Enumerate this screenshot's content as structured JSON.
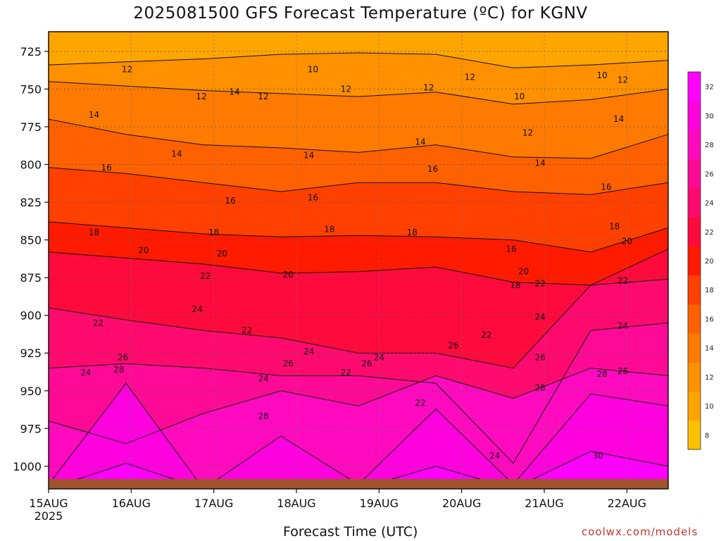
{
  "title": "2025081500 GFS Forecast Temperature (ºC) for KGNV",
  "xlabel": "Forecast Time (UTC)",
  "credit": "coolwx.com/models",
  "chart_data": {
    "type": "heatmap",
    "title": "2025081500 GFS Forecast Temperature (ºC) for KGNV",
    "xlabel": "Forecast Time (UTC)",
    "ylabel": "",
    "x_ticks": [
      "15AUG",
      "16AUG",
      "17AUG",
      "18AUG",
      "19AUG",
      "20AUG",
      "21AUG",
      "22AUG"
    ],
    "x_tick_sub": "2025",
    "xlim_days": [
      0,
      7.5
    ],
    "y_ticks": [
      725,
      750,
      775,
      800,
      825,
      850,
      875,
      900,
      925,
      950,
      975,
      1000
    ],
    "ylim_hpa": [
      1015,
      712
    ],
    "y_reversed": true,
    "grid": true,
    "contour_interval": 2,
    "colorbar_levels": [
      8,
      10,
      12,
      14,
      16,
      18,
      20,
      22,
      24,
      26,
      28,
      30,
      32
    ],
    "colorbar_colors": [
      "#ffc000",
      "#ffa500",
      "#ff9000",
      "#ff7a00",
      "#ff6000",
      "#ff4000",
      "#ff1a00",
      "#ff0a3c",
      "#ff0a6e",
      "#ff0a96",
      "#ff0abe",
      "#ff00de",
      "#ff00ff"
    ],
    "isotherm_hpa": [
      {
        "t": 10,
        "hpa": [
          734,
          732,
          730,
          727,
          726,
          727,
          736,
          734,
          731
        ]
      },
      {
        "t": 12,
        "hpa": [
          745,
          748,
          751,
          753,
          755,
          752,
          760,
          757,
          750
        ]
      },
      {
        "t": 14,
        "hpa": [
          770,
          780,
          787,
          789,
          792,
          787,
          795,
          796,
          780
        ]
      },
      {
        "t": 16,
        "hpa": [
          802,
          806,
          812,
          818,
          812,
          812,
          818,
          820,
          812
        ]
      },
      {
        "t": 18,
        "hpa": [
          838,
          842,
          846,
          848,
          847,
          848,
          850,
          858,
          842
        ]
      },
      {
        "t": 20,
        "hpa": [
          858,
          862,
          866,
          872,
          871,
          868,
          878,
          880,
          856
        ]
      },
      {
        "t": 22,
        "hpa": [
          895,
          903,
          910,
          915,
          925,
          925,
          935,
          880,
          876
        ]
      },
      {
        "t": 24,
        "hpa": [
          935,
          932,
          935,
          940,
          940,
          945,
          998,
          910,
          905
        ]
      },
      {
        "t": 26,
        "hpa": [
          970,
          985,
          965,
          950,
          960,
          940,
          955,
          935,
          940
        ]
      },
      {
        "t": 28,
        "hpa": [
          1012,
          945,
          1015,
          980,
          1012,
          962,
          1012,
          952,
          960
        ]
      },
      {
        "t": 30,
        "hpa": [
          1015,
          998,
          1015,
          1010,
          1015,
          1000,
          1015,
          990,
          1000
        ]
      }
    ],
    "labels": [
      {
        "text": "10",
        "day": 3.2,
        "hpa": 737
      },
      {
        "text": "10",
        "day": 5.7,
        "hpa": 755
      },
      {
        "text": "10",
        "day": 6.7,
        "hpa": 741
      },
      {
        "text": "12",
        "day": 0.95,
        "hpa": 737
      },
      {
        "text": "12",
        "day": 1.85,
        "hpa": 755
      },
      {
        "text": "12",
        "day": 2.6,
        "hpa": 755
      },
      {
        "text": "12",
        "day": 3.6,
        "hpa": 750
      },
      {
        "text": "12",
        "day": 4.6,
        "hpa": 749
      },
      {
        "text": "12",
        "day": 5.1,
        "hpa": 742
      },
      {
        "text": "12",
        "day": 5.8,
        "hpa": 779
      },
      {
        "text": "12",
        "day": 6.95,
        "hpa": 744
      },
      {
        "text": "14",
        "day": 0.55,
        "hpa": 767
      },
      {
        "text": "14",
        "day": 2.25,
        "hpa": 752
      },
      {
        "text": "14",
        "day": 1.55,
        "hpa": 793
      },
      {
        "text": "14",
        "day": 3.15,
        "hpa": 794
      },
      {
        "text": "14",
        "day": 4.5,
        "hpa": 785
      },
      {
        "text": "14",
        "day": 5.95,
        "hpa": 799
      },
      {
        "text": "14",
        "day": 6.9,
        "hpa": 770
      },
      {
        "text": "16",
        "day": 0.7,
        "hpa": 802
      },
      {
        "text": "16",
        "day": 2.2,
        "hpa": 824
      },
      {
        "text": "16",
        "day": 3.2,
        "hpa": 822
      },
      {
        "text": "16",
        "day": 4.65,
        "hpa": 803
      },
      {
        "text": "16",
        "day": 5.6,
        "hpa": 856
      },
      {
        "text": "16",
        "day": 6.75,
        "hpa": 815
      },
      {
        "text": "18",
        "day": 0.55,
        "hpa": 845
      },
      {
        "text": "18",
        "day": 2.0,
        "hpa": 845
      },
      {
        "text": "18",
        "day": 3.4,
        "hpa": 843
      },
      {
        "text": "18",
        "day": 4.4,
        "hpa": 845
      },
      {
        "text": "18",
        "day": 5.65,
        "hpa": 880
      },
      {
        "text": "18",
        "day": 6.85,
        "hpa": 841
      },
      {
        "text": "20",
        "day": 1.15,
        "hpa": 857
      },
      {
        "text": "20",
        "day": 2.1,
        "hpa": 859
      },
      {
        "text": "20",
        "day": 2.9,
        "hpa": 873
      },
      {
        "text": "20",
        "day": 5.75,
        "hpa": 871
      },
      {
        "text": "20",
        "day": 7.0,
        "hpa": 851
      },
      {
        "text": "22",
        "day": 0.6,
        "hpa": 905
      },
      {
        "text": "22",
        "day": 1.9,
        "hpa": 874
      },
      {
        "text": "22",
        "day": 2.4,
        "hpa": 910
      },
      {
        "text": "22",
        "day": 3.6,
        "hpa": 938
      },
      {
        "text": "22",
        "day": 4.5,
        "hpa": 958
      },
      {
        "text": "22",
        "day": 5.3,
        "hpa": 913
      },
      {
        "text": "22",
        "day": 5.95,
        "hpa": 879
      },
      {
        "text": "22",
        "day": 6.95,
        "hpa": 877
      },
      {
        "text": "24",
        "day": 0.45,
        "hpa": 938
      },
      {
        "text": "24",
        "day": 1.8,
        "hpa": 896
      },
      {
        "text": "24",
        "day": 2.6,
        "hpa": 942
      },
      {
        "text": "24",
        "day": 3.15,
        "hpa": 924
      },
      {
        "text": "24",
        "day": 4.0,
        "hpa": 928
      },
      {
        "text": "24",
        "day": 5.4,
        "hpa": 993
      },
      {
        "text": "24",
        "day": 5.95,
        "hpa": 901
      },
      {
        "text": "24",
        "day": 6.95,
        "hpa": 907
      },
      {
        "text": "26",
        "day": 0.9,
        "hpa": 928
      },
      {
        "text": "26",
        "day": 2.9,
        "hpa": 932
      },
      {
        "text": "26",
        "day": 3.85,
        "hpa": 932
      },
      {
        "text": "26",
        "day": 4.9,
        "hpa": 920
      },
      {
        "text": "26",
        "day": 5.95,
        "hpa": 928
      },
      {
        "text": "26",
        "day": 6.95,
        "hpa": 937
      },
      {
        "text": "28",
        "day": 0.85,
        "hpa": 936
      },
      {
        "text": "28",
        "day": 2.6,
        "hpa": 967
      },
      {
        "text": "28",
        "day": 5.95,
        "hpa": 948
      },
      {
        "text": "28",
        "day": 6.7,
        "hpa": 939
      },
      {
        "text": "30",
        "day": 6.65,
        "hpa": 993
      }
    ]
  }
}
